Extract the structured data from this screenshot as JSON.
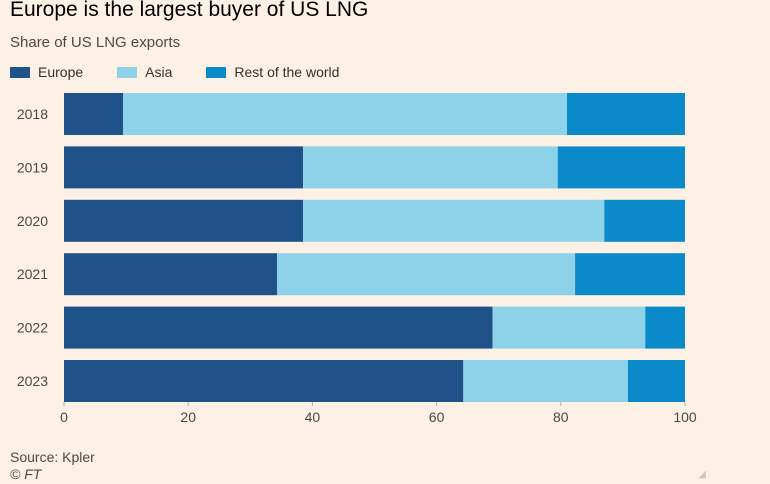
{
  "header": {
    "title": "Europe is the largest buyer of US LNG",
    "subtitle": "Share of US LNG exports"
  },
  "footer": {
    "source": "Source: Kpler",
    "copyright": "© FT"
  },
  "colors": {
    "background": "#fdf1e6",
    "europe": "#1e5288",
    "asia": "#8dd2e9",
    "rest": "#0b8ac9"
  },
  "chart_data": {
    "type": "bar",
    "orientation": "horizontal",
    "stacked": true,
    "title": "Europe is the largest buyer of US LNG",
    "subtitle": "Share of US LNG exports",
    "categories": [
      "2018",
      "2019",
      "2020",
      "2021",
      "2022",
      "2023"
    ],
    "series": [
      {
        "name": "Europe",
        "color": "#1e5288",
        "values": [
          9.5,
          38.5,
          38.5,
          34.3,
          69,
          64.3
        ]
      },
      {
        "name": "Asia",
        "color": "#8dd2e9",
        "values": [
          71.5,
          41,
          48.5,
          48,
          24.6,
          26.5
        ]
      },
      {
        "name": "Rest of the world",
        "color": "#0b8ac9",
        "values": [
          19,
          20.5,
          13,
          17.7,
          6.4,
          9.2
        ]
      }
    ],
    "xlim": [
      0,
      100
    ],
    "xticks": [
      0,
      20,
      40,
      60,
      80,
      100
    ],
    "xlabel": "",
    "ylabel": "",
    "legend": "top-left",
    "grid": false
  }
}
